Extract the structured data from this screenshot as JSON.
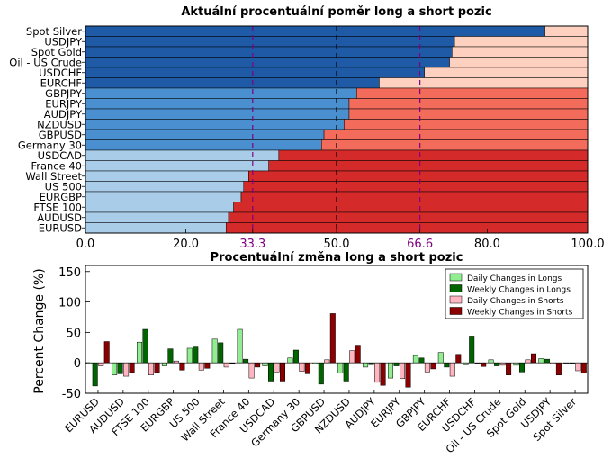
{
  "chart_data": [
    {
      "type": "bar",
      "orientation": "horizontal",
      "stacked": true,
      "title": "Aktuální procentuální poměr long a short pozic",
      "categories": [
        "Spot Silver",
        "USDJPY",
        "Spot Gold",
        "Oil - US Crude",
        "USDCHF",
        "EURCHF",
        "GBPJPY",
        "EURJPY",
        "AUDJPY",
        "NZDUSD",
        "GBPUSD",
        "Germany 30",
        "USDCAD",
        "France 40",
        "Wall Street",
        "US 500",
        "EURGBP",
        "FTSE 100",
        "AUDUSD",
        "EURUSD"
      ],
      "series": [
        {
          "values": [
            91.5,
            73.5,
            73.0,
            72.5,
            67.5,
            58.5,
            54.0,
            52.5,
            52.5,
            51.5,
            47.5,
            47.0,
            38.5,
            36.5,
            32.5,
            31.5,
            31.0,
            29.5,
            28.5,
            28.0
          ]
        }
      ],
      "short_values": [
        8.5,
        26.5,
        27.0,
        27.5,
        32.5,
        41.5,
        46.0,
        47.5,
        47.5,
        48.5,
        52.5,
        53.0,
        61.5,
        63.5,
        67.5,
        68.5,
        69.0,
        70.5,
        71.5,
        72.0
      ],
      "xlim": [
        0,
        100
      ],
      "xticks": [
        "0.0",
        "20.0",
        "33.3",
        "50.0",
        "66.6",
        "80.0",
        "100.0"
      ],
      "xtick_values": [
        0,
        20,
        33.3,
        50,
        66.6,
        80,
        100
      ],
      "reference_lines": [
        33.3,
        50,
        66.6
      ],
      "colors": {
        "long_dark": "#1f5aa6",
        "long_mid": "#4a90d0",
        "long_light": "#a9cde9",
        "short_light": "#fdd0bf",
        "short_mid": "#f26b5b",
        "short_dark": "#d42a2a",
        "ref_purple": "#800080",
        "ref_black": "#000000"
      }
    },
    {
      "type": "bar",
      "title": "Procentuální změna long a short pozic",
      "ylabel": "Percent Change (%)",
      "ylim": [
        -50,
        160
      ],
      "yticks": [
        -50,
        0,
        50,
        100,
        150
      ],
      "categories": [
        "EURUSD",
        "AUDUSD",
        "FTSE 100",
        "EURGBP",
        "US 500",
        "Wall Street",
        "France 40",
        "USDCAD",
        "Germany 30",
        "GBPUSD",
        "NZDUSD",
        "AUDJPY",
        "EURJPY",
        "GBPJPY",
        "EURCHF",
        "USDCHF",
        "Oil - US Crude",
        "Spot Gold",
        "USDJPY",
        "Spot Silver"
      ],
      "legend_position": "top-right",
      "series": [
        {
          "name": "Daily Changes in Longs",
          "color": "#90ee90",
          "values": [
            -2,
            -20,
            34,
            -5,
            24,
            39,
            55,
            -5,
            8,
            -2,
            -17,
            -7,
            -25,
            12,
            17,
            -3,
            5,
            -4,
            7,
            -1
          ]
        },
        {
          "name": "Weekly Changes in Longs",
          "color": "#006400",
          "values": [
            -38,
            -18,
            55,
            23,
            26,
            33,
            6,
            -30,
            21,
            -35,
            -30,
            -3,
            -5,
            8,
            -7,
            44,
            -5,
            -15,
            6,
            -1
          ]
        },
        {
          "name": "Daily Changes in Shorts",
          "color": "#ffb6c1",
          "values": [
            -5,
            -22,
            -20,
            3,
            -12,
            -7,
            -25,
            -15,
            -14,
            5,
            20,
            -32,
            -26,
            -15,
            -22,
            -1,
            -4,
            5,
            -2,
            -13
          ]
        },
        {
          "name": "Weekly Changes in Shorts",
          "color": "#8b0000",
          "values": [
            35,
            -16,
            -16,
            -12,
            -9,
            0,
            -7,
            -30,
            -18,
            81,
            29,
            -37,
            -40,
            -10,
            14,
            -6,
            -20,
            15,
            -20,
            -17
          ]
        }
      ]
    }
  ]
}
